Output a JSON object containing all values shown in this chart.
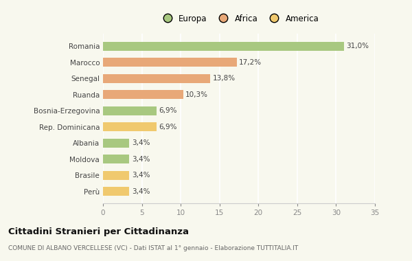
{
  "categories": [
    "Perù",
    "Brasile",
    "Moldova",
    "Albania",
    "Rep. Dominicana",
    "Bosnia-Erzegovina",
    "Ruanda",
    "Senegal",
    "Marocco",
    "Romania"
  ],
  "values": [
    3.4,
    3.4,
    3.4,
    3.4,
    6.9,
    6.9,
    10.3,
    13.8,
    17.2,
    31.0
  ],
  "colors": [
    "#f0c96e",
    "#f0c96e",
    "#a8c880",
    "#a8c880",
    "#f0c96e",
    "#a8c880",
    "#e8a878",
    "#e8a878",
    "#e8a878",
    "#a8c880"
  ],
  "labels": [
    "3,4%",
    "3,4%",
    "3,4%",
    "3,4%",
    "6,9%",
    "6,9%",
    "10,3%",
    "13,8%",
    "17,2%",
    "31,0%"
  ],
  "legend": [
    {
      "label": "Europa",
      "color": "#a8c880"
    },
    {
      "label": "Africa",
      "color": "#e8a878"
    },
    {
      "label": "America",
      "color": "#f0c96e"
    }
  ],
  "xlim": [
    0,
    35
  ],
  "xticks": [
    0,
    5,
    10,
    15,
    20,
    25,
    30,
    35
  ],
  "title": "Cittadini Stranieri per Cittadinanza",
  "subtitle": "COMUNE DI ALBANO VERCELLESE (VC) - Dati ISTAT al 1° gennaio - Elaborazione TUTTITALIA.IT",
  "background_color": "#f8f8ee",
  "grid_color": "#ffffff",
  "bar_height": 0.55,
  "label_fontsize": 7.5,
  "ytick_fontsize": 7.5,
  "xtick_fontsize": 7.5,
  "title_fontsize": 9.5,
  "subtitle_fontsize": 6.5,
  "legend_fontsize": 8.5
}
